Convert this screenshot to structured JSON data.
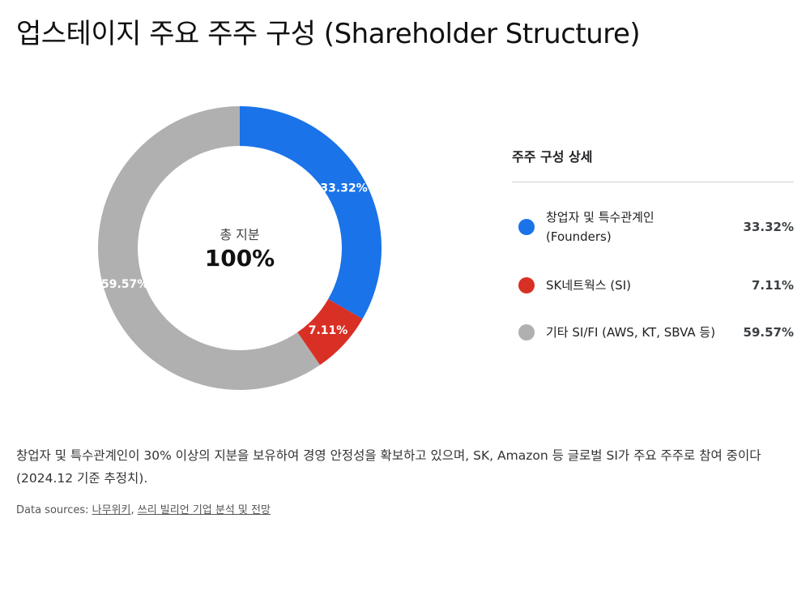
{
  "title": "업스테이지 주요 주주 구성 (Shareholder Structure)",
  "center": {
    "caption": "총 지분",
    "value": "100%"
  },
  "legend": {
    "title": "주주 구성 상세",
    "items": [
      {
        "label_line1": "창업자 및 특수관계인",
        "label_line2": "(Founders)",
        "value": "33.32%"
      },
      {
        "label_line1": "SK네트웍스 (SI)",
        "label_line2": "",
        "value": "7.11%"
      },
      {
        "label_line1": "기타 SI/FI (AWS, KT, SBVA 등)",
        "label_line2": "",
        "value": "59.57%"
      }
    ]
  },
  "note": "창업자 및 특수관계인이 30% 이상의 지분을 보유하여 경영 안정성을 확보하고 있으며, SK, Amazon 등 글로벌 SI가 주요 주주로 참여 중이다 (2024.12 기준 추정치).",
  "sources": {
    "prefix": "Data sources: ",
    "links": [
      "나무위키",
      "쓰리 빌리언 기업 분석 및 전망"
    ],
    "separator": ", "
  },
  "colors": {
    "founders": "#1a73e8",
    "sk": "#d93025",
    "others": "#b0b0b0"
  },
  "chart_data": {
    "type": "pie",
    "style": "donut",
    "categories": [
      "창업자 및 특수관계인 (Founders)",
      "SK네트웍스 (SI)",
      "기타 SI/FI (AWS, KT, SBVA 등)"
    ],
    "values": [
      33.32,
      7.11,
      59.57
    ],
    "labels": [
      "33.32%",
      "7.11%",
      "59.57%"
    ],
    "colors": [
      "#1a73e8",
      "#d93025",
      "#b0b0b0"
    ],
    "start_angle": "12 o'clock, clockwise",
    "legend_position": "right"
  }
}
